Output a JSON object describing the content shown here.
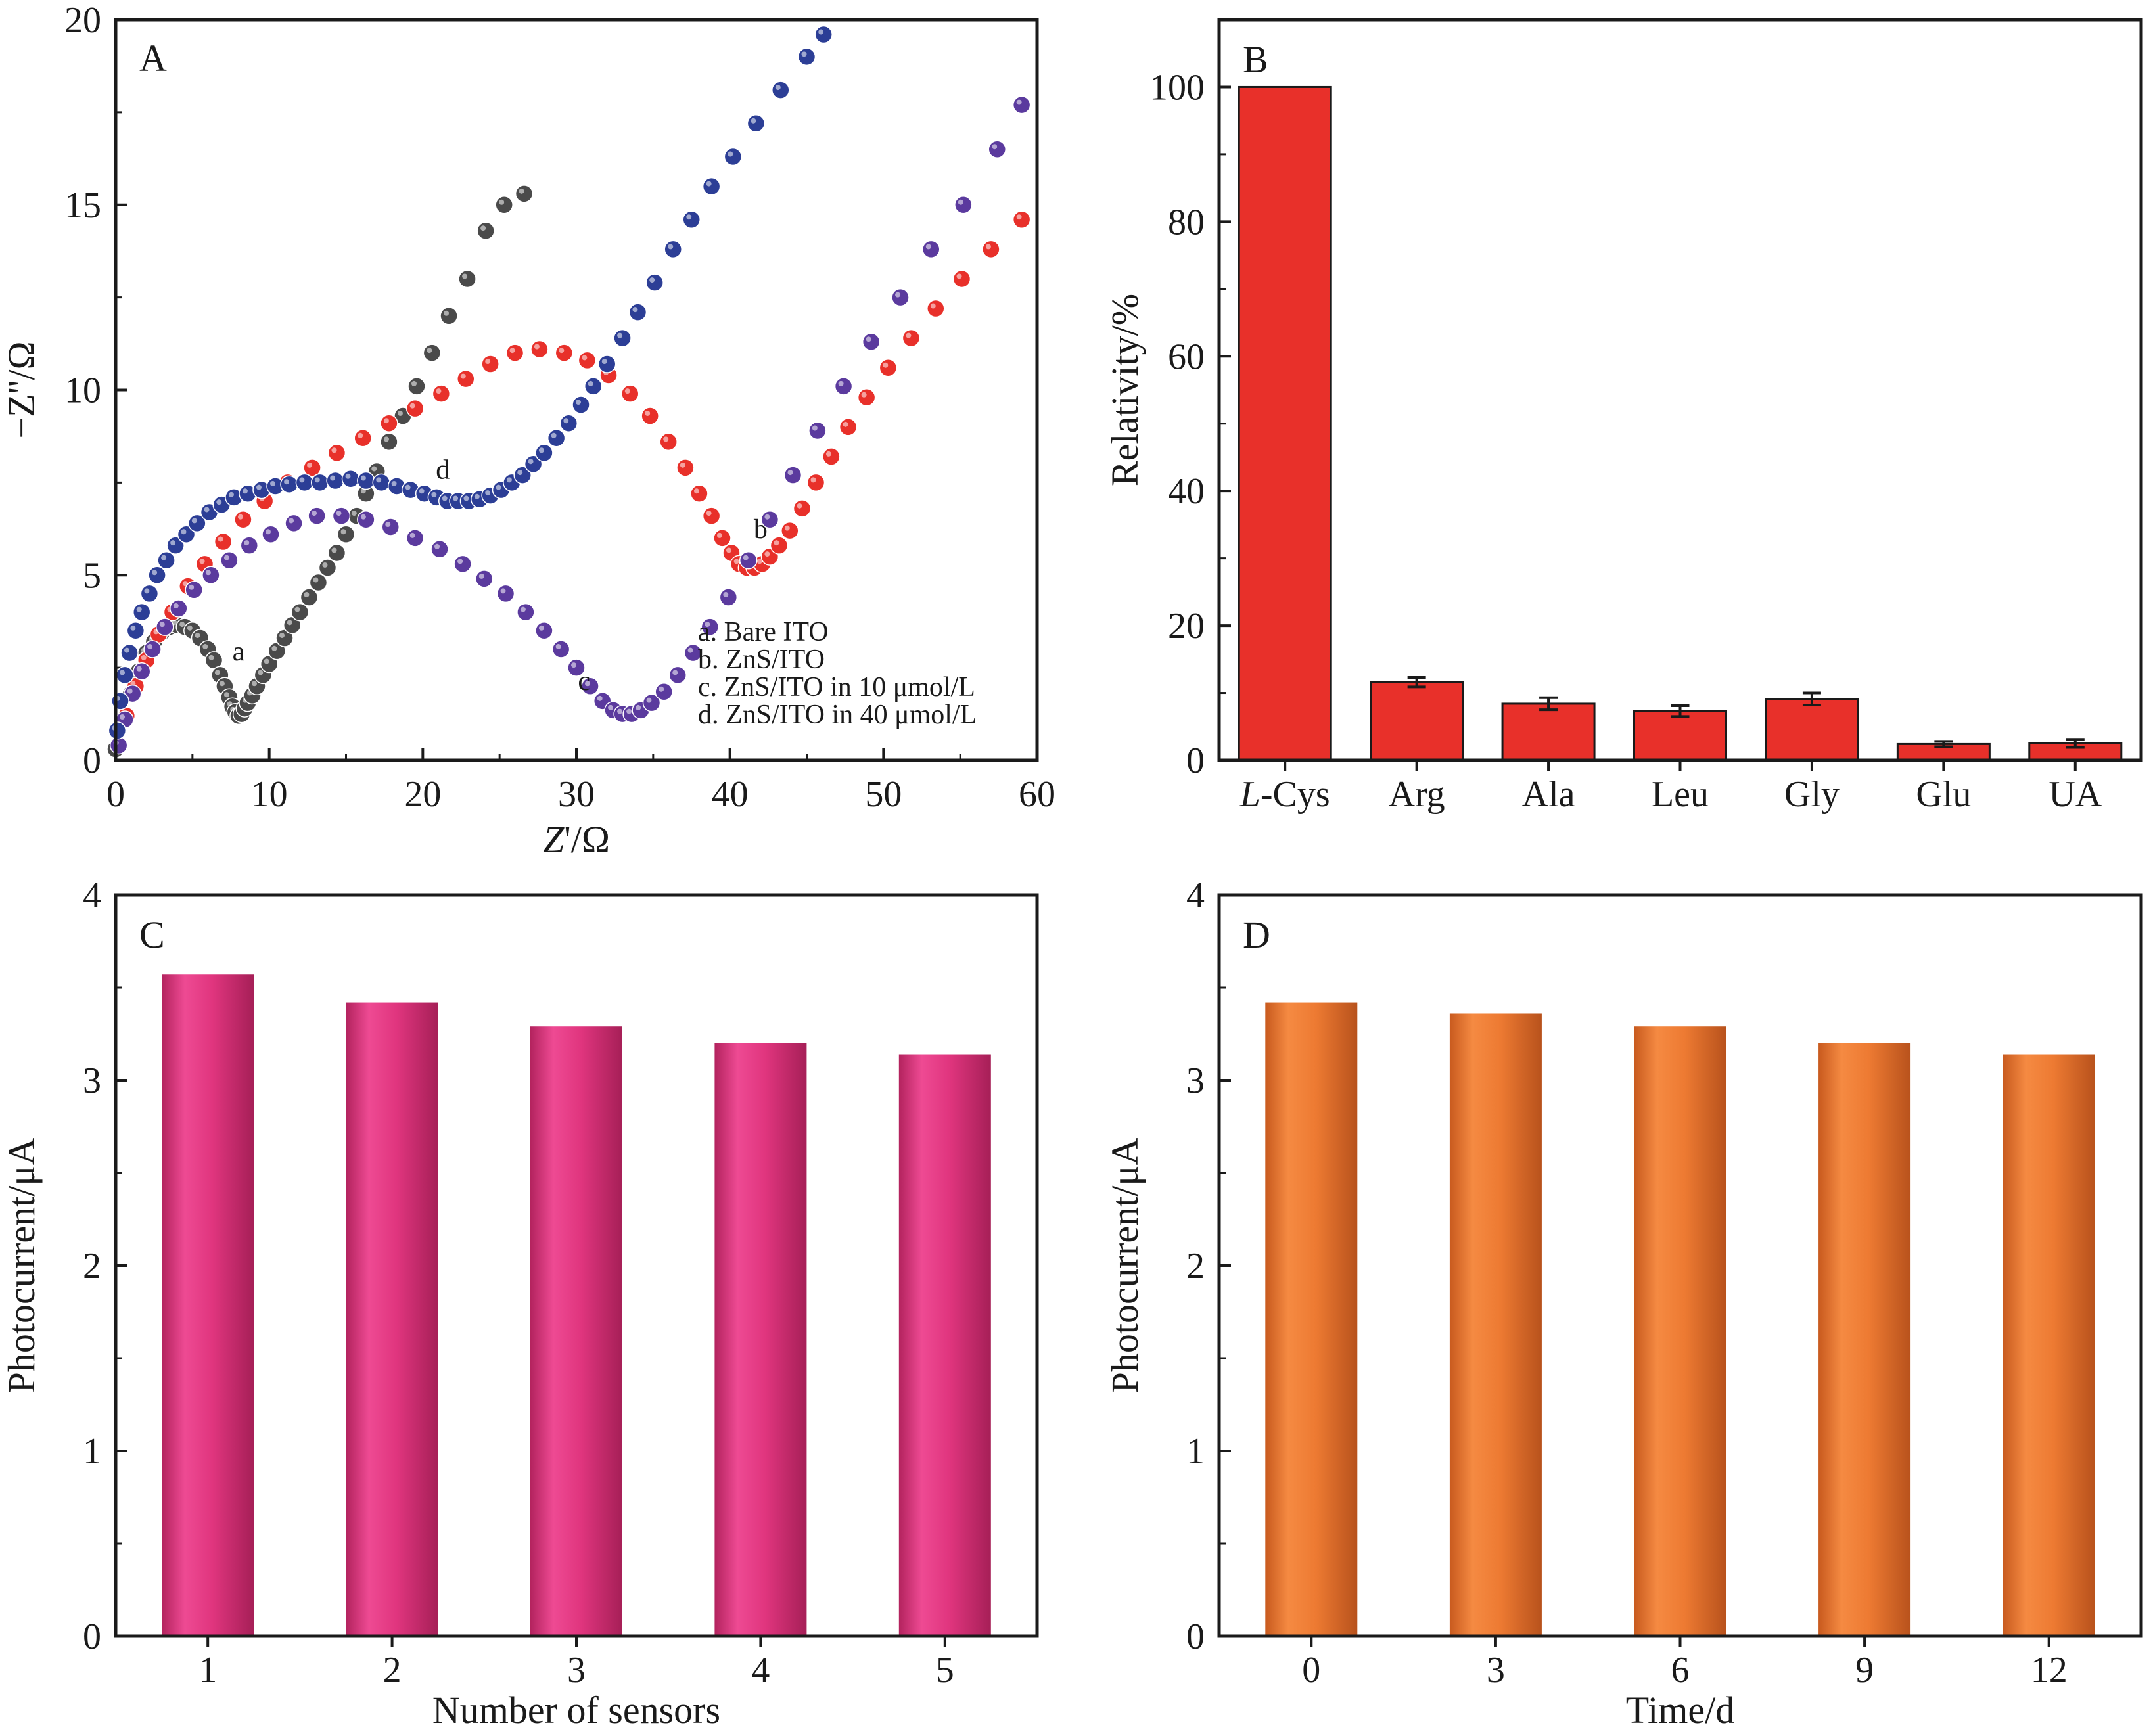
{
  "chart_data": [
    {
      "panel": "A",
      "type": "scatter",
      "xlabel_prefix": "Z",
      "xlabel_suffix": "'/Ω",
      "ylabel": "−Z''/Ω",
      "xlim": [
        0,
        60
      ],
      "ylim": [
        0,
        20
      ],
      "xticks": [
        0,
        10,
        20,
        30,
        40,
        50,
        60
      ],
      "yticks": [
        0,
        5,
        10,
        15,
        20
      ],
      "legend_position": "bottom-right",
      "legend": [
        "a. Bare ITO",
        "b. ZnS/ITO",
        "c. ZnS/ITO in 10 μmol/L",
        "d. ZnS/ITO in 40 μmol/L"
      ],
      "series": [
        {
          "name": "a. Bare ITO",
          "marker_label": "a",
          "label_at": [
            8.0,
            2.7
          ],
          "color": "#4a4a4a",
          "x": [
            0,
            0.5,
            1.0,
            1.5,
            2.0,
            2.5,
            3.0,
            3.5,
            4.0,
            4.5,
            5.0,
            5.5,
            6.0,
            6.4,
            6.8,
            7.1,
            7.4,
            7.6,
            7.8,
            8.0,
            8.2,
            8.4,
            8.6,
            8.9,
            9.2,
            9.6,
            10.0,
            10.5,
            11.0,
            11.5,
            12.0,
            12.6,
            13.2,
            13.8,
            14.4,
            15.0,
            15.7,
            16.3,
            17.0,
            17.8,
            18.7,
            19.6,
            20.6,
            21.7,
            22.9,
            24.1,
            25.3,
            26.6
          ],
          "y": [
            0.3,
            1.1,
            1.8,
            2.4,
            2.9,
            3.2,
            3.45,
            3.6,
            3.65,
            3.6,
            3.5,
            3.3,
            3.0,
            2.7,
            2.3,
            2.0,
            1.7,
            1.45,
            1.3,
            1.2,
            1.25,
            1.4,
            1.55,
            1.75,
            2.0,
            2.3,
            2.6,
            2.95,
            3.3,
            3.65,
            4.0,
            4.4,
            4.8,
            5.2,
            5.6,
            6.1,
            6.6,
            7.2,
            7.8,
            8.6,
            9.3,
            10.1,
            11.0,
            12.0,
            13.0,
            14.3,
            15.0,
            15.3
          ]
        },
        {
          "name": "b. ZnS/ITO",
          "marker_label": "b",
          "label_at": [
            42.0,
            6.0
          ],
          "color": "#e8302a",
          "x": [
            0.2,
            0.7,
            1.3,
            2.0,
            2.8,
            3.7,
            4.7,
            5.8,
            7.0,
            8.3,
            9.7,
            11.2,
            12.8,
            14.4,
            16.1,
            17.8,
            19.5,
            21.2,
            22.8,
            24.4,
            26.0,
            27.6,
            29.2,
            30.7,
            32.1,
            33.5,
            34.8,
            36.0,
            37.1,
            38.0,
            38.8,
            39.5,
            40.1,
            40.6,
            41.1,
            41.6,
            42.1,
            42.6,
            43.2,
            43.9,
            44.7,
            45.6,
            46.6,
            47.7,
            48.9,
            50.3,
            51.8,
            53.4,
            55.1,
            57.0,
            59.0
          ],
          "y": [
            0.4,
            1.2,
            2.0,
            2.7,
            3.4,
            4.0,
            4.7,
            5.3,
            5.9,
            6.5,
            7.0,
            7.5,
            7.9,
            8.3,
            8.7,
            9.1,
            9.5,
            9.9,
            10.3,
            10.7,
            11.0,
            11.1,
            11.0,
            10.8,
            10.4,
            9.9,
            9.3,
            8.6,
            7.9,
            7.2,
            6.6,
            6.0,
            5.6,
            5.3,
            5.2,
            5.2,
            5.3,
            5.5,
            5.8,
            6.2,
            6.8,
            7.5,
            8.2,
            9.0,
            9.8,
            10.6,
            11.4,
            12.2,
            13.0,
            13.8,
            14.6
          ]
        },
        {
          "name": "c. ZnS/ITO in 10 μmol/L",
          "marker_label": "c",
          "label_at": [
            30.5,
            1.9
          ],
          "color": "#5b3a9e",
          "x": [
            0.2,
            0.6,
            1.1,
            1.7,
            2.4,
            3.2,
            4.1,
            5.1,
            6.2,
            7.4,
            8.7,
            10.1,
            11.6,
            13.1,
            14.7,
            16.3,
            17.9,
            19.5,
            21.1,
            22.6,
            24.0,
            25.4,
            26.7,
            27.9,
            29.0,
            30.0,
            30.9,
            31.7,
            32.4,
            33.0,
            33.6,
            34.2,
            34.9,
            35.7,
            36.6,
            37.6,
            38.7,
            39.9,
            41.2,
            42.6,
            44.1,
            45.7,
            47.4,
            49.2,
            51.1,
            53.1,
            55.2,
            57.4,
            59.0
          ],
          "y": [
            0.4,
            1.1,
            1.8,
            2.4,
            3.0,
            3.6,
            4.1,
            4.6,
            5.0,
            5.4,
            5.8,
            6.1,
            6.4,
            6.6,
            6.6,
            6.5,
            6.3,
            6.0,
            5.7,
            5.3,
            4.9,
            4.5,
            4.0,
            3.5,
            3.0,
            2.5,
            2.0,
            1.6,
            1.35,
            1.25,
            1.25,
            1.35,
            1.55,
            1.85,
            2.3,
            2.9,
            3.6,
            4.4,
            5.4,
            6.5,
            7.7,
            8.9,
            10.1,
            11.3,
            12.5,
            13.8,
            15.0,
            16.5,
            17.7
          ]
        },
        {
          "name": "d. ZnS/ITO in 40 μmol/L",
          "marker_label": "d",
          "label_at": [
            21.3,
            7.6
          ],
          "color": "#2c3e96",
          "x": [
            0.1,
            0.3,
            0.6,
            0.9,
            1.3,
            1.7,
            2.2,
            2.7,
            3.3,
            3.9,
            4.6,
            5.3,
            6.1,
            6.9,
            7.7,
            8.6,
            9.5,
            10.4,
            11.3,
            12.3,
            13.3,
            14.3,
            15.3,
            16.3,
            17.3,
            18.3,
            19.2,
            20.1,
            20.9,
            21.6,
            22.3,
            23.0,
            23.7,
            24.4,
            25.1,
            25.8,
            26.5,
            27.2,
            27.9,
            28.7,
            29.5,
            30.3,
            31.1,
            32.0,
            33.0,
            34.0,
            35.1,
            36.3,
            37.5,
            38.8,
            40.2,
            41.7,
            43.3,
            45.0,
            46.1
          ],
          "y": [
            0.8,
            1.6,
            2.3,
            2.9,
            3.5,
            4.0,
            4.5,
            5.0,
            5.4,
            5.8,
            6.1,
            6.4,
            6.7,
            6.9,
            7.1,
            7.2,
            7.3,
            7.4,
            7.45,
            7.5,
            7.5,
            7.55,
            7.6,
            7.55,
            7.5,
            7.4,
            7.3,
            7.2,
            7.1,
            7.0,
            7.0,
            7.0,
            7.05,
            7.15,
            7.3,
            7.5,
            7.7,
            8.0,
            8.3,
            8.7,
            9.1,
            9.6,
            10.1,
            10.7,
            11.4,
            12.1,
            12.9,
            13.8,
            14.6,
            15.5,
            16.3,
            17.2,
            18.1,
            19.0,
            19.6
          ]
        }
      ]
    },
    {
      "panel": "B",
      "type": "bar",
      "ylabel": "Relativity/%",
      "ylim": [
        0,
        110
      ],
      "yticks": [
        0,
        20,
        40,
        60,
        80,
        100
      ],
      "categories": [
        "L-Cys",
        "Arg",
        "Ala",
        "Leu",
        "Gly",
        "Glu",
        "UA"
      ],
      "first_category_italic": "L",
      "first_category_rest": "-Cys",
      "values": [
        100,
        11.6,
        8.4,
        7.3,
        9.1,
        2.4,
        2.5
      ],
      "errors": [
        0,
        0.7,
        0.9,
        0.8,
        0.9,
        0.4,
        0.6
      ],
      "color": "#e8302a"
    },
    {
      "panel": "C",
      "type": "bar",
      "xlabel": "Number of sensors",
      "ylabel": "Photocurrent/μA",
      "ylim": [
        0,
        4
      ],
      "yticks": [
        0,
        1,
        2,
        3,
        4
      ],
      "categories": [
        "1",
        "2",
        "3",
        "4",
        "5"
      ],
      "values": [
        3.57,
        3.42,
        3.29,
        3.2,
        3.14
      ],
      "color": "#e0357e"
    },
    {
      "panel": "D",
      "type": "bar",
      "xlabel": "Time/d",
      "ylabel": "Photocurrent/μA",
      "ylim": [
        0,
        4
      ],
      "yticks": [
        0,
        1,
        2,
        3,
        4
      ],
      "categories": [
        "0",
        "3",
        "6",
        "9",
        "12"
      ],
      "values": [
        3.42,
        3.36,
        3.29,
        3.2,
        3.14
      ],
      "color": "#ed7a32"
    }
  ]
}
